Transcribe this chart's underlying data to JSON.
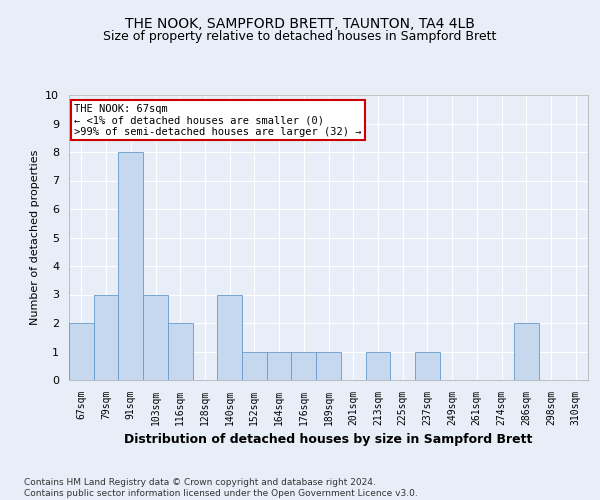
{
  "title1": "THE NOOK, SAMPFORD BRETT, TAUNTON, TA4 4LB",
  "title2": "Size of property relative to detached houses in Sampford Brett",
  "xlabel": "Distribution of detached houses by size in Sampford Brett",
  "ylabel": "Number of detached properties",
  "categories": [
    "67sqm",
    "79sqm",
    "91sqm",
    "103sqm",
    "116sqm",
    "128sqm",
    "140sqm",
    "152sqm",
    "164sqm",
    "176sqm",
    "189sqm",
    "201sqm",
    "213sqm",
    "225sqm",
    "237sqm",
    "249sqm",
    "261sqm",
    "274sqm",
    "286sqm",
    "298sqm",
    "310sqm"
  ],
  "values": [
    2,
    3,
    8,
    3,
    2,
    0,
    3,
    1,
    1,
    1,
    1,
    0,
    1,
    0,
    1,
    0,
    0,
    0,
    2,
    0,
    0
  ],
  "bar_color": "#c5d8ee",
  "bar_edge_color": "#6699cc",
  "ylim": [
    0,
    10
  ],
  "yticks": [
    0,
    1,
    2,
    3,
    4,
    5,
    6,
    7,
    8,
    9,
    10
  ],
  "annotation_text": "THE NOOK: 67sqm\n← <1% of detached houses are smaller (0)\n>99% of semi-detached houses are larger (32) →",
  "annotation_box_facecolor": "#ffffff",
  "annotation_box_edge": "#cc0000",
  "footer": "Contains HM Land Registry data © Crown copyright and database right 2024.\nContains public sector information licensed under the Open Government Licence v3.0.",
  "fig_facecolor": "#e8eef8",
  "plot_facecolor": "#e8eef8",
  "grid_color": "#ffffff",
  "title1_fontsize": 10,
  "title2_fontsize": 9,
  "xlabel_fontsize": 9,
  "ylabel_fontsize": 8,
  "tick_fontsize": 7,
  "annotation_fontsize": 7.5
}
